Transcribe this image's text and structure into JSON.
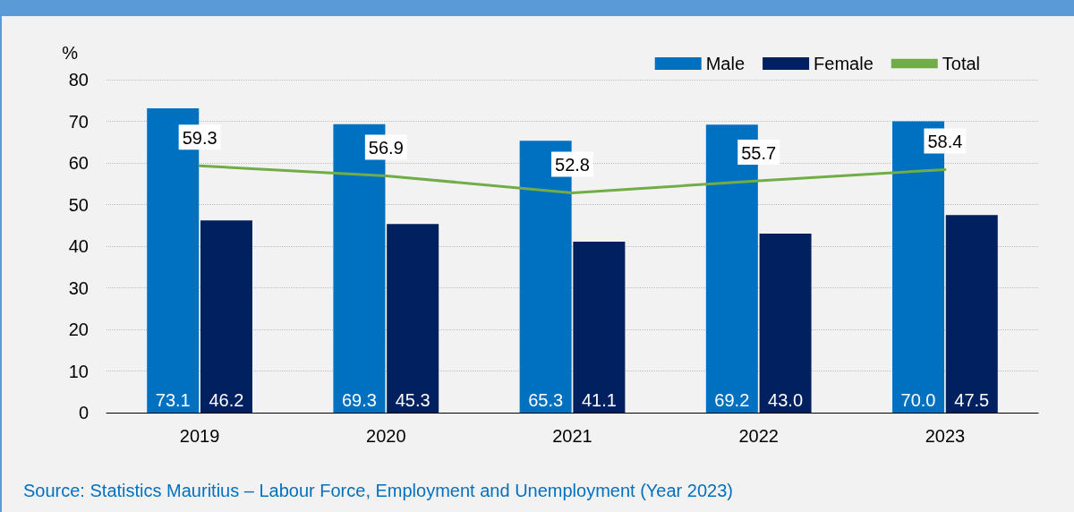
{
  "chart_data": {
    "type": "bar",
    "ylabel": "%",
    "categories": [
      "2019",
      "2020",
      "2021",
      "2022",
      "2023"
    ],
    "series": [
      {
        "name": "Male",
        "color": "#0070c0",
        "values": [
          73.1,
          69.3,
          65.3,
          69.2,
          70.0
        ],
        "value_labels": [
          "73.1",
          "69.3",
          "65.3",
          "69.2",
          "70.0"
        ]
      },
      {
        "name": "Female",
        "color": "#002060",
        "values": [
          46.2,
          45.3,
          41.1,
          43.0,
          47.5
        ],
        "value_labels": [
          "46.2",
          "45.3",
          "41.1",
          "43.0",
          "47.5"
        ]
      },
      {
        "name": "Total",
        "type": "line",
        "color": "#70ad47",
        "values": [
          59.3,
          56.9,
          52.8,
          55.7,
          58.4
        ],
        "value_labels": [
          "59.3",
          "56.9",
          "52.8",
          "55.7",
          "58.4"
        ]
      }
    ],
    "ylim": [
      0,
      80
    ],
    "yticks": [
      0,
      10,
      20,
      30,
      40,
      50,
      60,
      70,
      80
    ],
    "grid": "y",
    "legend": "top right",
    "marker": "none",
    "annotations": [
      "Source: Statistics Mauritius – Labour Force, Employment and Unemployment (Year 2023)"
    ]
  }
}
